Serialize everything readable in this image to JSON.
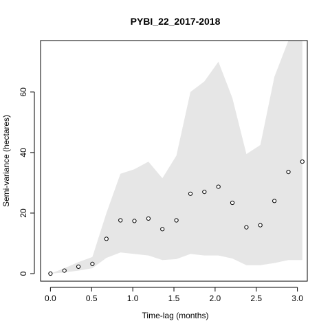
{
  "chart_data": {
    "type": "scatter",
    "title": "PYBI_22_2017-2018",
    "xlabel": "Time-lag (months)",
    "ylabel": "Semi-variance (hectares)",
    "xlim": [
      -0.12,
      3.12
    ],
    "ylim": [
      -2.5,
      77
    ],
    "x_ticks": [
      0.0,
      0.5,
      1.0,
      1.5,
      2.0,
      2.5,
      3.0
    ],
    "x_tick_labels": [
      "0.0",
      "0.5",
      "1.0",
      "1.5",
      "2.0",
      "2.5",
      "3.0"
    ],
    "y_ticks": [
      0,
      20,
      40,
      60
    ],
    "y_tick_labels": [
      "0",
      "20",
      "40",
      "60"
    ],
    "grid": false,
    "legend": "none",
    "series": [
      {
        "type": "scatter",
        "marker": "open-circle",
        "color": "#000000",
        "x": [
          0.0,
          0.17,
          0.34,
          0.51,
          0.68,
          0.85,
          1.02,
          1.19,
          1.36,
          1.53,
          1.7,
          1.87,
          2.04,
          2.21,
          2.38,
          2.55,
          2.72,
          2.89,
          3.06
        ],
        "y": [
          0.0,
          1.0,
          2.3,
          3.2,
          11.5,
          17.6,
          17.4,
          18.2,
          14.7,
          17.6,
          26.4,
          27.0,
          28.7,
          23.4,
          15.3,
          16.0,
          24.0,
          33.6,
          37.0
        ]
      },
      {
        "type": "area",
        "color": "#e6e6e6",
        "x": [
          0.0,
          0.17,
          0.34,
          0.51,
          0.68,
          0.85,
          1.02,
          1.19,
          1.36,
          1.53,
          1.7,
          1.87,
          2.04,
          2.21,
          2.38,
          2.55,
          2.72,
          2.89,
          3.06
        ],
        "upper": [
          0.0,
          1.8,
          3.8,
          5.5,
          20.0,
          33.0,
          34.5,
          37.0,
          31.5,
          39.0,
          60.0,
          63.5,
          70.0,
          58.0,
          39.5,
          42.5,
          65.0,
          77.0,
          77.0
        ],
        "lower": [
          0.0,
          0.4,
          1.0,
          1.8,
          5.2,
          7.0,
          6.5,
          6.0,
          4.5,
          4.8,
          6.5,
          6.0,
          6.0,
          5.0,
          2.8,
          2.8,
          3.5,
          4.5,
          4.5
        ]
      }
    ]
  }
}
